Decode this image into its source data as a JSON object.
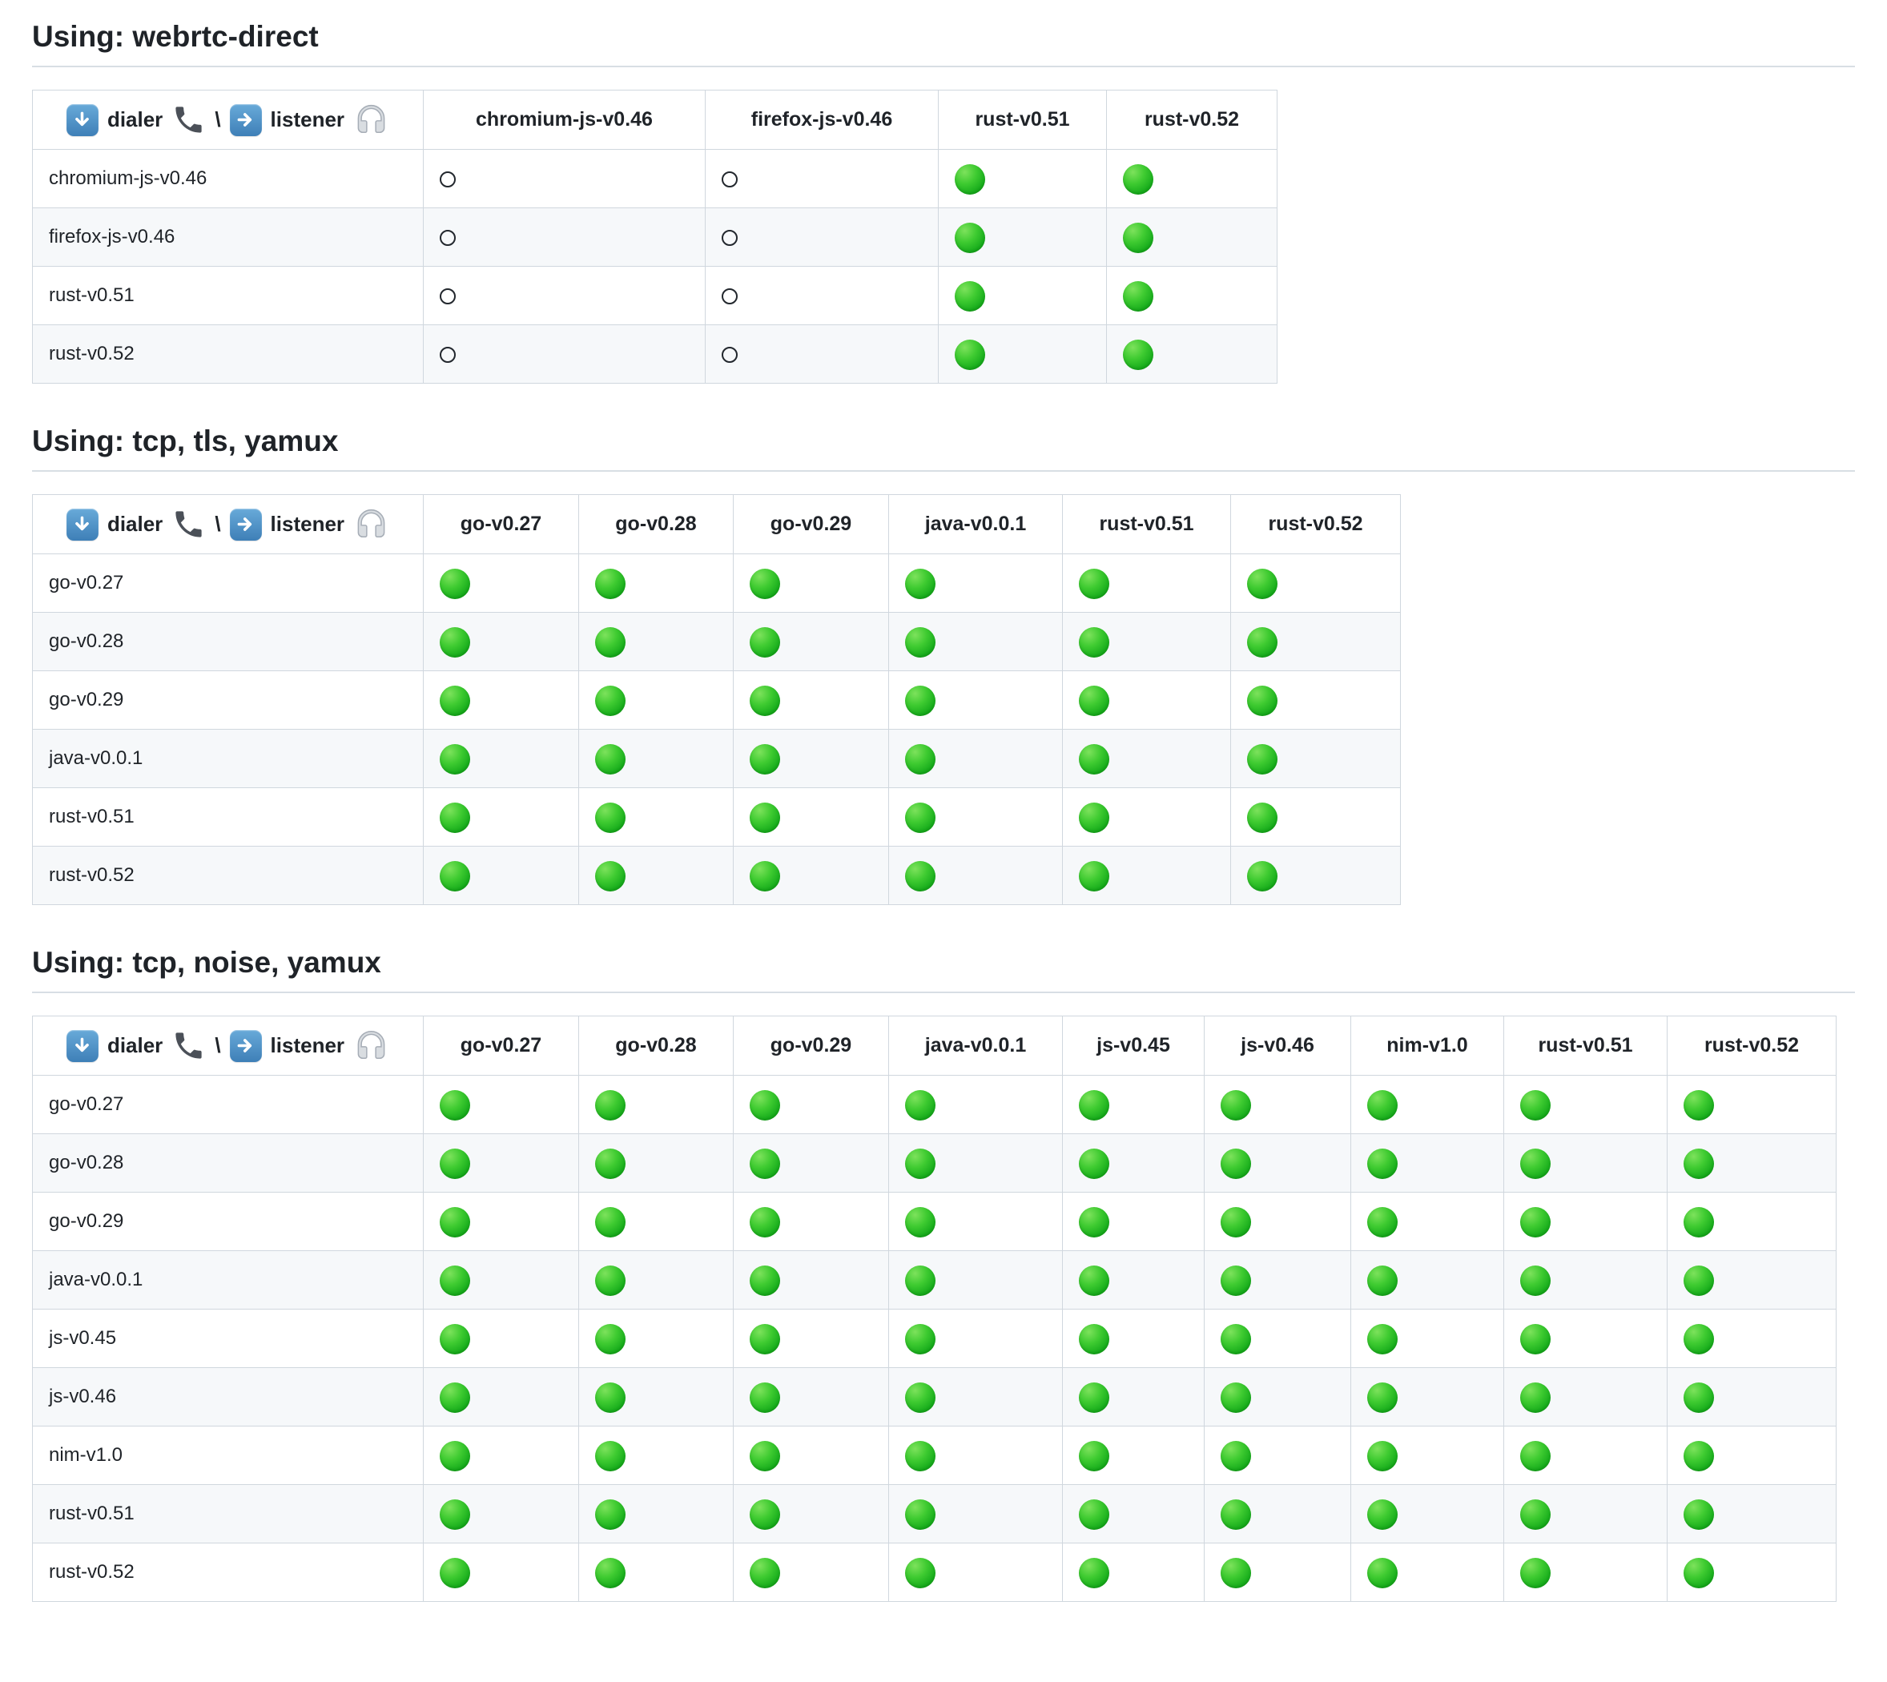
{
  "colors": {
    "heading_text": "#1f2328",
    "table_border": "#d0d7de",
    "heading_rule": "#d8dee4",
    "alt_row_background": "#f6f8fa",
    "pass_green": "#22b422",
    "white_circle_outline": "#22272d",
    "emoji_button_blue": "#3e7fb7"
  },
  "cell_glyphs": {
    "green": "green-circle",
    "white": "white-circle"
  },
  "corner_icons": [
    "down-arrow-button",
    "telephone-receiver",
    "right-arrow-button",
    "headphones"
  ],
  "tables": [
    {
      "id": "webrtc-direct",
      "title": "Using: webrtc-direct",
      "corner": {
        "dialer": "dialer",
        "separator": "\\",
        "listener": "listener"
      },
      "columns": [
        "chromium-js-v0.46",
        "firefox-js-v0.46",
        "rust-v0.51",
        "rust-v0.52"
      ],
      "rows": [
        {
          "label": "chromium-js-v0.46",
          "cells": [
            "white",
            "white",
            "green",
            "green"
          ]
        },
        {
          "label": "firefox-js-v0.46",
          "cells": [
            "white",
            "white",
            "green",
            "green"
          ]
        },
        {
          "label": "rust-v0.51",
          "cells": [
            "white",
            "white",
            "green",
            "green"
          ]
        },
        {
          "label": "rust-v0.52",
          "cells": [
            "white",
            "white",
            "green",
            "green"
          ]
        }
      ]
    },
    {
      "id": "tcp-tls-yamux",
      "title": "Using: tcp, tls, yamux",
      "corner": {
        "dialer": "dialer",
        "separator": "\\",
        "listener": "listener"
      },
      "columns": [
        "go-v0.27",
        "go-v0.28",
        "go-v0.29",
        "java-v0.0.1",
        "rust-v0.51",
        "rust-v0.52"
      ],
      "rows": [
        {
          "label": "go-v0.27",
          "cells": [
            "green",
            "green",
            "green",
            "green",
            "green",
            "green"
          ]
        },
        {
          "label": "go-v0.28",
          "cells": [
            "green",
            "green",
            "green",
            "green",
            "green",
            "green"
          ]
        },
        {
          "label": "go-v0.29",
          "cells": [
            "green",
            "green",
            "green",
            "green",
            "green",
            "green"
          ]
        },
        {
          "label": "java-v0.0.1",
          "cells": [
            "green",
            "green",
            "green",
            "green",
            "green",
            "green"
          ]
        },
        {
          "label": "rust-v0.51",
          "cells": [
            "green",
            "green",
            "green",
            "green",
            "green",
            "green"
          ]
        },
        {
          "label": "rust-v0.52",
          "cells": [
            "green",
            "green",
            "green",
            "green",
            "green",
            "green"
          ]
        }
      ]
    },
    {
      "id": "tcp-noise-yamux",
      "title": "Using: tcp, noise, yamux",
      "corner": {
        "dialer": "dialer",
        "separator": "\\",
        "listener": "listener"
      },
      "columns": [
        "go-v0.27",
        "go-v0.28",
        "go-v0.29",
        "java-v0.0.1",
        "js-v0.45",
        "js-v0.46",
        "nim-v1.0",
        "rust-v0.51",
        "rust-v0.52"
      ],
      "rows": [
        {
          "label": "go-v0.27",
          "cells": [
            "green",
            "green",
            "green",
            "green",
            "green",
            "green",
            "green",
            "green",
            "green"
          ]
        },
        {
          "label": "go-v0.28",
          "cells": [
            "green",
            "green",
            "green",
            "green",
            "green",
            "green",
            "green",
            "green",
            "green"
          ]
        },
        {
          "label": "go-v0.29",
          "cells": [
            "green",
            "green",
            "green",
            "green",
            "green",
            "green",
            "green",
            "green",
            "green"
          ]
        },
        {
          "label": "java-v0.0.1",
          "cells": [
            "green",
            "green",
            "green",
            "green",
            "green",
            "green",
            "green",
            "green",
            "green"
          ]
        },
        {
          "label": "js-v0.45",
          "cells": [
            "green",
            "green",
            "green",
            "green",
            "green",
            "green",
            "green",
            "green",
            "green"
          ]
        },
        {
          "label": "js-v0.46",
          "cells": [
            "green",
            "green",
            "green",
            "green",
            "green",
            "green",
            "green",
            "green",
            "green"
          ]
        },
        {
          "label": "nim-v1.0",
          "cells": [
            "green",
            "green",
            "green",
            "green",
            "green",
            "green",
            "green",
            "green",
            "green"
          ]
        },
        {
          "label": "rust-v0.51",
          "cells": [
            "green",
            "green",
            "green",
            "green",
            "green",
            "green",
            "green",
            "green",
            "green"
          ]
        },
        {
          "label": "rust-v0.52",
          "cells": [
            "green",
            "green",
            "green",
            "green",
            "green",
            "green",
            "green",
            "green",
            "green"
          ]
        }
      ]
    }
  ]
}
